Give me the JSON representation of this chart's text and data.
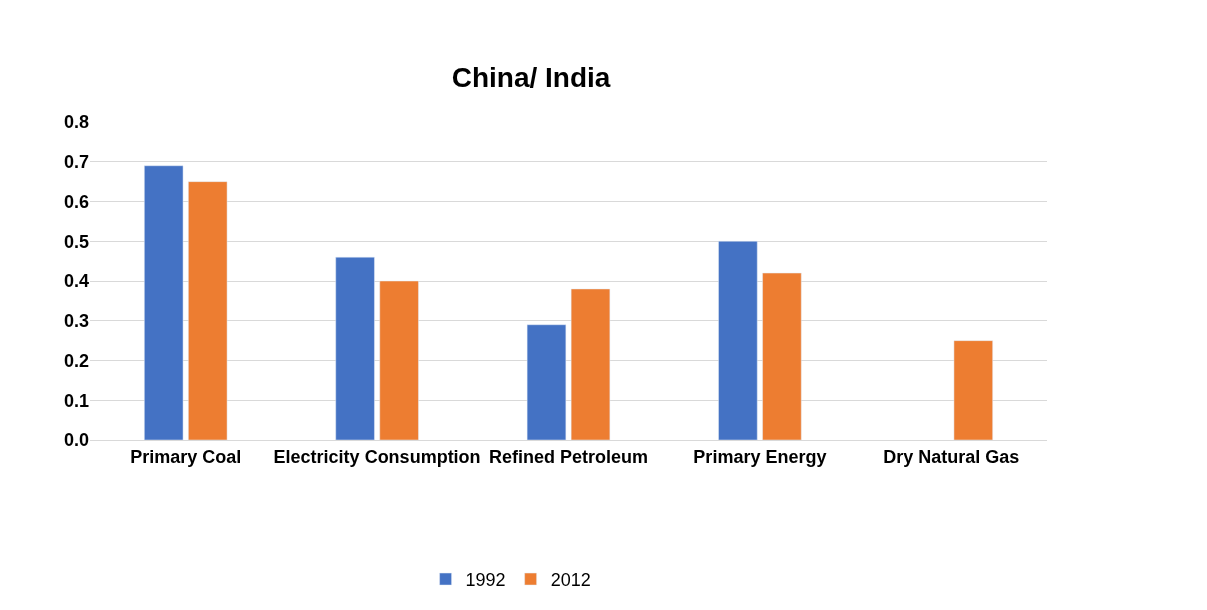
{
  "chart_data": {
    "type": "bar",
    "title": "China/ India",
    "categories": [
      "Primary Coal",
      "Electricity Consumption",
      "Refined Petroleum",
      "Primary Energy",
      "Dry Natural Gas"
    ],
    "series": [
      {
        "name": "1992",
        "color": "#4472c4",
        "values": [
          0.69,
          0.46,
          0.29,
          0.5,
          null
        ]
      },
      {
        "name": "2012",
        "color": "#ed7d31",
        "values": [
          0.65,
          0.4,
          0.38,
          0.42,
          0.25
        ]
      }
    ],
    "ylim": [
      0,
      0.8
    ],
    "yticks": [
      {
        "value": 0,
        "label": "0.0"
      },
      {
        "value": 0.1,
        "label": "0.1"
      },
      {
        "value": 0.2,
        "label": "0.2"
      },
      {
        "value": 0.3,
        "label": "0.3"
      },
      {
        "value": 0.4,
        "label": "0.4"
      },
      {
        "value": 0.5,
        "label": "0.5"
      },
      {
        "value": 0.6,
        "label": "0.6"
      },
      {
        "value": 0.7,
        "label": "0.7"
      },
      {
        "value": 0.8,
        "label": "0.8"
      }
    ],
    "grid": "y",
    "legend": "bottom"
  }
}
